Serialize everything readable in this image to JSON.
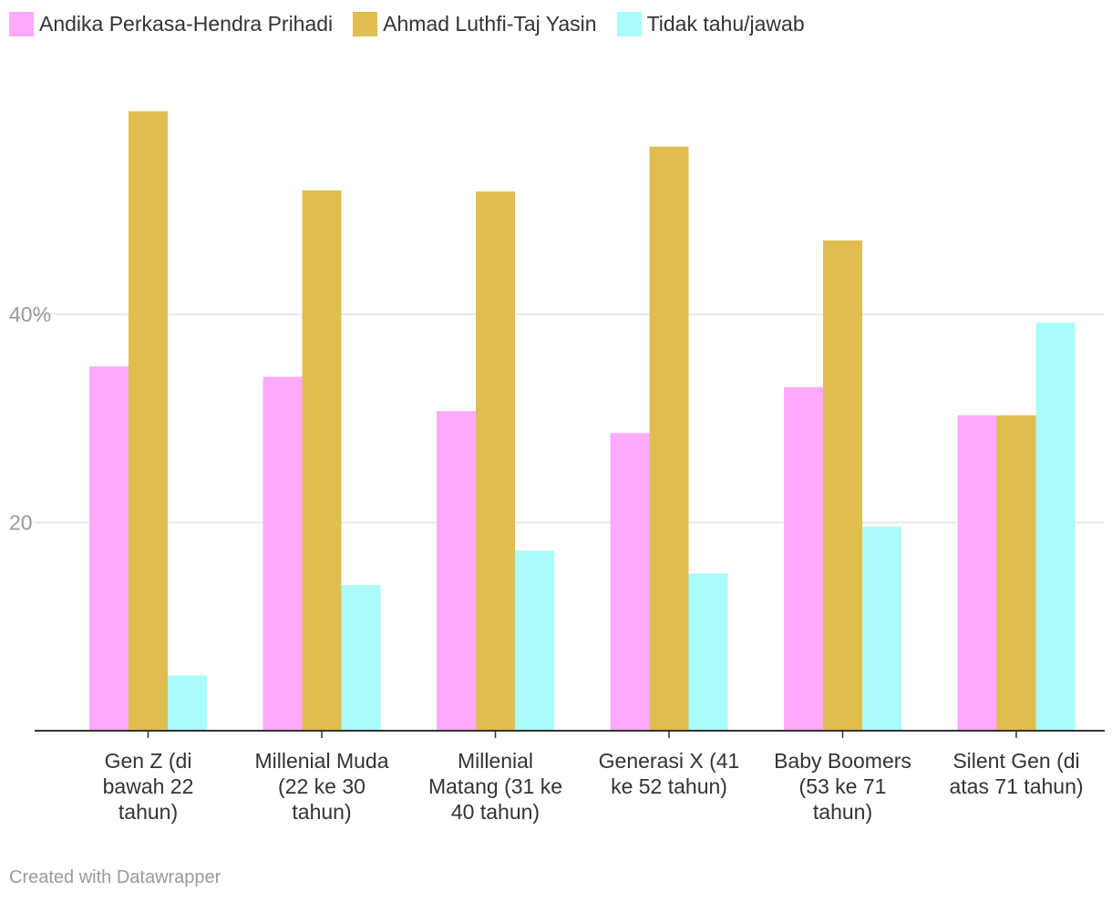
{
  "chart_data": {
    "type": "bar",
    "categories": [
      [
        "Gen Z (di",
        "bawah 22",
        "tahun)"
      ],
      [
        "Millenial Muda",
        "(22 ke 30",
        "tahun)"
      ],
      [
        "Millenial",
        "Matang (31 ke",
        "40 tahun)"
      ],
      [
        "Generasi X (41",
        "ke 52 tahun)"
      ],
      [
        "Baby Boomers",
        "(53 ke 71",
        "tahun)"
      ],
      [
        "Silent Gen (di",
        "atas 71 tahun)"
      ]
    ],
    "series": [
      {
        "name": "Andika Perkasa-Hendra Prihadi",
        "color": "#fdaafc",
        "values": [
          35.0,
          34.0,
          30.7,
          28.6,
          33.0,
          30.3
        ]
      },
      {
        "name": "Ahmad Luthfi-Taj Yasin",
        "color": "#dfbe4f",
        "values": [
          59.5,
          51.9,
          51.8,
          56.1,
          47.1,
          30.3
        ]
      },
      {
        "name": "Tidak tahu/jawab",
        "color": "#aafcfc",
        "values": [
          5.3,
          14.0,
          17.3,
          15.1,
          19.6,
          39.2
        ]
      }
    ],
    "yticks": [
      {
        "value": 20,
        "label": "20"
      },
      {
        "value": 40,
        "label": "40%"
      }
    ],
    "ylim": [
      0,
      62
    ],
    "title": "",
    "xlabel": "",
    "ylabel": "",
    "legend_position": "top-left",
    "grid": true
  },
  "credit": "Created with Datawrapper"
}
